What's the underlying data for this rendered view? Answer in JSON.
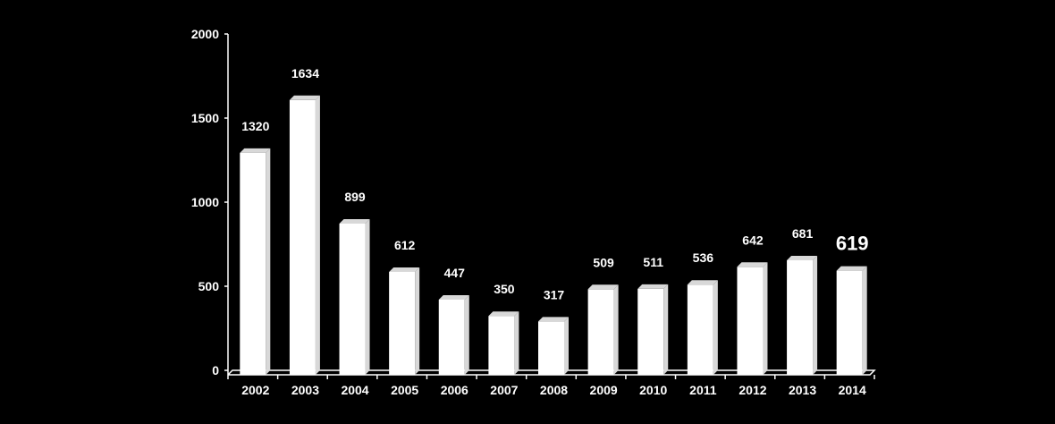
{
  "chart_data": {
    "type": "bar",
    "categories": [
      "2002",
      "2003",
      "2004",
      "2005",
      "2006",
      "2007",
      "2008",
      "2009",
      "2010",
      "2011",
      "2012",
      "2013",
      "2014"
    ],
    "values": [
      1320,
      1634,
      899,
      612,
      447,
      350,
      317,
      509,
      511,
      536,
      642,
      681,
      619
    ],
    "data_labels": [
      "1320",
      "1634",
      "899",
      "612",
      "447",
      "350",
      "317",
      "509",
      "511",
      "536",
      "642",
      "681",
      "619"
    ],
    "emphasized_label_index": 12,
    "y_ticks": [
      "0",
      "500",
      "1000",
      "1500",
      "2000"
    ],
    "ylim": [
      0,
      2000
    ],
    "title": "",
    "xlabel": "",
    "ylabel": "",
    "grid": false,
    "colors": {
      "background": "#000000",
      "bar": "#ffffff",
      "bar_shade": "#d8d8d8",
      "text": "#ffffff",
      "axis": "#ffffff"
    }
  }
}
